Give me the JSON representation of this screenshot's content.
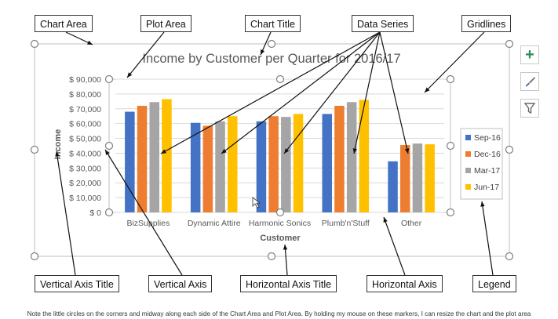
{
  "chart_data": {
    "type": "bar",
    "title": "Income by Customer per Quarter for 2016/17",
    "xlabel": "Customer",
    "ylabel": "Income",
    "categories": [
      "BizSupplies",
      "Dynamic Attire",
      "Harmonic Sonics",
      "Plumb'n'Stuff",
      "Other"
    ],
    "ylim": [
      0,
      90000
    ],
    "yticks": [
      "$ 0",
      "$ 10,000",
      "$ 20,000",
      "$ 30,000",
      "$ 40,000",
      "$ 50,000",
      "$ 60,000",
      "$ 70,000",
      "$ 80,000",
      "$ 90,000"
    ],
    "gridlines": true,
    "legend_position": "right",
    "series": [
      {
        "name": "Sep-16",
        "color": "#4472c4",
        "values": [
          68000,
          60500,
          61500,
          66500,
          34500
        ]
      },
      {
        "name": "Dec-16",
        "color": "#ed7d31",
        "values": [
          72000,
          58500,
          65000,
          72000,
          45500
        ]
      },
      {
        "name": "Mar-17",
        "color": "#a5a5a5",
        "values": [
          74500,
          61500,
          64500,
          74500,
          46500
        ]
      },
      {
        "name": "Jun-17",
        "color": "#ffc000",
        "values": [
          76500,
          65000,
          66500,
          76000,
          46000
        ]
      }
    ]
  },
  "callouts": {
    "chart_area": "Chart Area",
    "plot_area": "Plot Area",
    "chart_title": "Chart Title",
    "data_series": "Data Series",
    "gridlines": "Gridlines",
    "vertical_axis_title": "Vertical Axis Title",
    "vertical_axis": "Vertical Axis",
    "horizontal_axis_title": "Horizontal Axis Title",
    "horizontal_axis": "Horizontal Axis",
    "legend": "Legend"
  },
  "tools": [
    {
      "icon": "plus-icon",
      "glyph": "+",
      "color": "#2e8b57"
    },
    {
      "icon": "paintbrush-icon",
      "color": "#3a6fb0"
    },
    {
      "icon": "filter-icon",
      "color": "#666666"
    }
  ],
  "caption": "Note the little circles on the corners and midway along each side of the Chart Area and Plot Area. By holding my mouse on these markers, I can resize the chart and the plot area"
}
